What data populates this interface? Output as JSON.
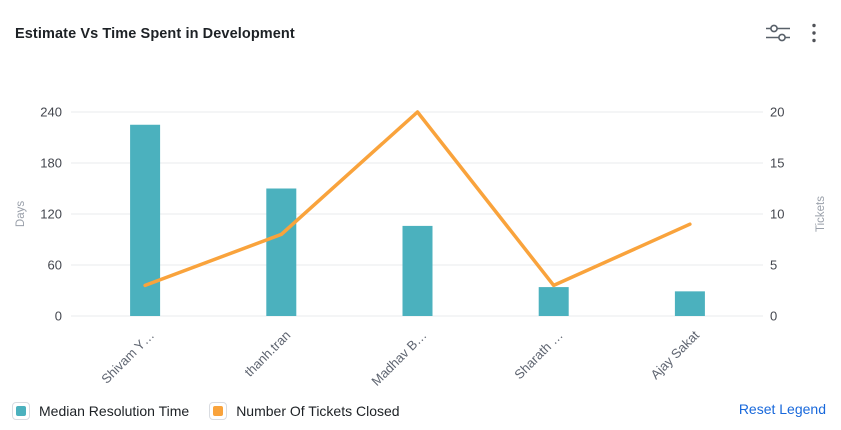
{
  "header": {
    "title": "Estimate Vs Time Spent in Development"
  },
  "chart_data": {
    "type": "combo",
    "categories": [
      "Shivam Y…",
      "thanh.tran",
      "Madhav B…",
      "Sharath …",
      "Ajay Sakat"
    ],
    "series": [
      {
        "name": "Median Resolution Time",
        "type": "bar",
        "axis": "left",
        "values": [
          225,
          150,
          106,
          34,
          29
        ],
        "color": "#4BB1BE"
      },
      {
        "name": "Number Of Tickets Closed",
        "type": "line",
        "axis": "right",
        "values": [
          3,
          8,
          20,
          3,
          9
        ],
        "color": "#F9A33C"
      }
    ],
    "title": "Estimate Vs Time Spent in Development",
    "left_axis": {
      "label": "Days",
      "ticks": [
        0,
        60,
        120,
        180,
        240
      ],
      "max": 240
    },
    "right_axis": {
      "label": "Tickets",
      "ticks": [
        0,
        5,
        10,
        15,
        20
      ],
      "max": 20
    },
    "grid": true,
    "legend_position": "bottom"
  },
  "legend": {
    "items": [
      {
        "label": "Median Resolution Time",
        "color": "#4BB1BE"
      },
      {
        "label": "Number Of Tickets Closed",
        "color": "#F9A33C"
      }
    ],
    "reset_label": "Reset Legend"
  },
  "colors": {
    "bar_teal": "#4BB1BE",
    "line_orange": "#F9A33C",
    "link_blue": "#1868DB",
    "gridline": "#edeff1"
  }
}
